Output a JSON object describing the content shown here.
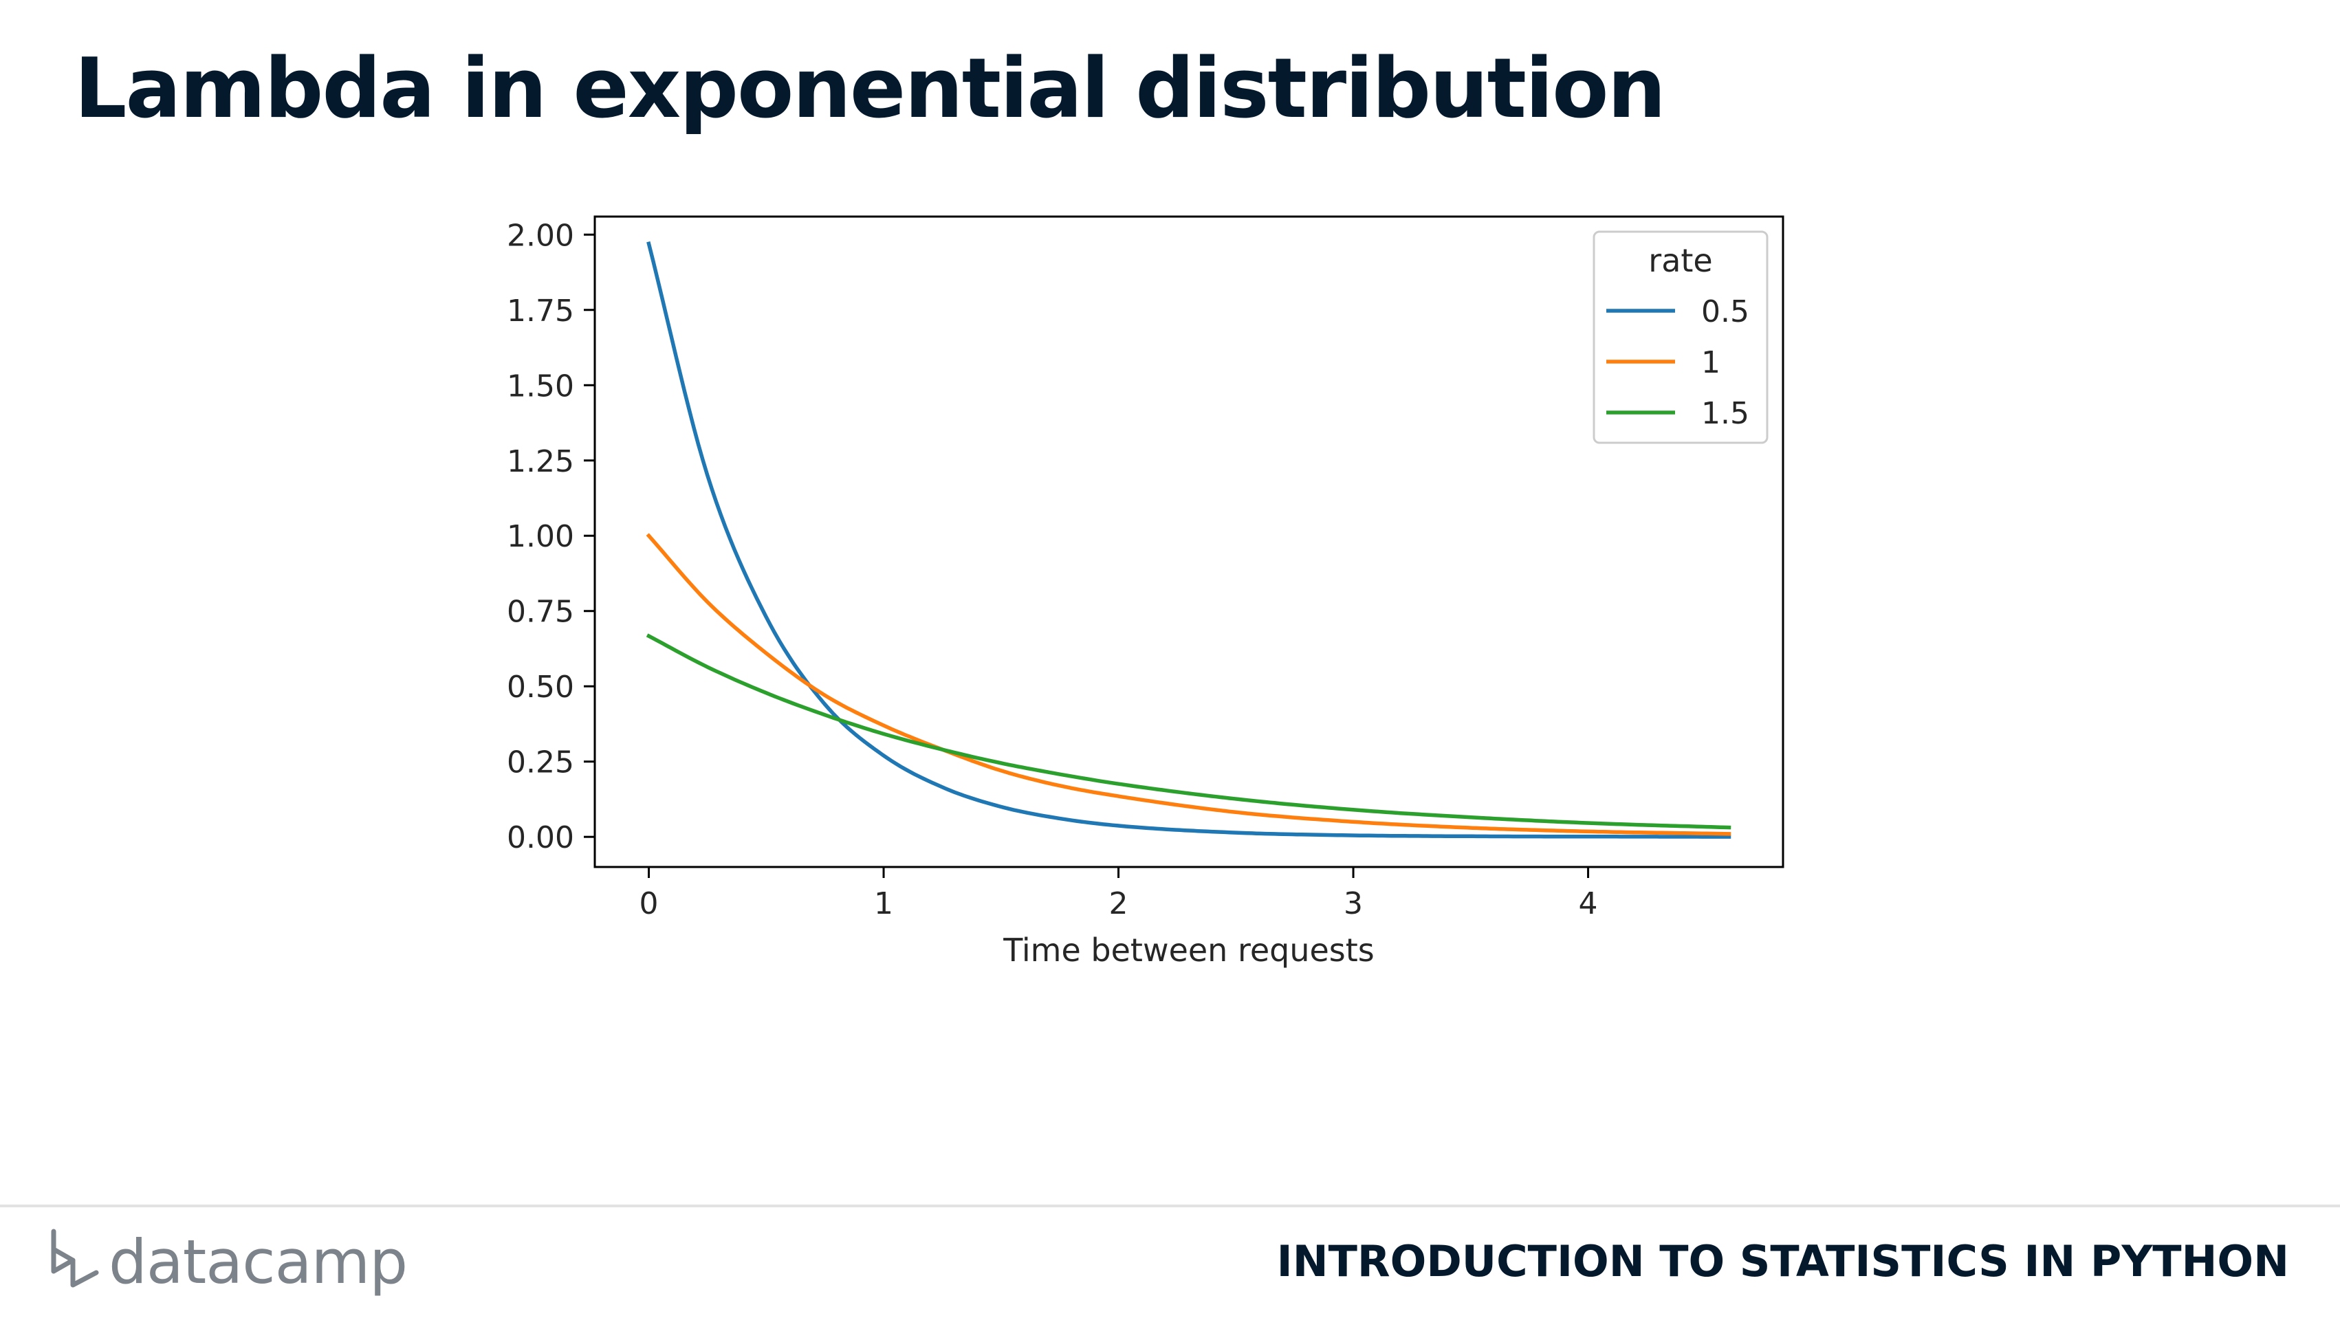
{
  "slide": {
    "title": "Lambda in exponential distribution"
  },
  "footer": {
    "logo_text": "datacamp",
    "logo_icon": "datacamp-logo-icon",
    "course_title": "INTRODUCTION TO STATISTICS IN PYTHON"
  },
  "colors": {
    "title": "#05192d",
    "series_0_5": "#1f77b4",
    "series_1": "#ff7f0e",
    "series_1_5": "#2ca02c",
    "footer_text": "#7d838a"
  },
  "chart_data": {
    "type": "line",
    "title": "",
    "xlabel": "Time between requests",
    "ylabel": "",
    "xlim": [
      -0.23,
      4.83
    ],
    "ylim": [
      -0.1,
      2.06
    ],
    "xticks": [
      0,
      1,
      2,
      3,
      4
    ],
    "xtick_labels": [
      "0",
      "1",
      "2",
      "3",
      "4"
    ],
    "yticks": [
      0.0,
      0.25,
      0.5,
      0.75,
      1.0,
      1.25,
      1.5,
      1.75,
      2.0
    ],
    "ytick_labels": [
      "0.00",
      "0.25",
      "0.50",
      "0.75",
      "1.00",
      "1.25",
      "1.50",
      "1.75",
      "2.00"
    ],
    "x_range": [
      0.0,
      4.6
    ],
    "grid": false,
    "legend": {
      "title": "rate",
      "placement": "top-right"
    },
    "series": [
      {
        "name": "0.5",
        "color": "#1f77b4",
        "x": [
          0,
          0.25,
          0.5,
          0.75,
          1,
          1.25,
          1.5,
          1.75,
          2,
          2.5,
          3,
          3.5,
          4,
          4.6
        ],
        "y": [
          1.97,
          1.2,
          0.73,
          0.44,
          0.27,
          0.165,
          0.1,
          0.061,
          0.037,
          0.014,
          0.005,
          0.002,
          0.001,
          0.0002
        ]
      },
      {
        "name": "1",
        "color": "#ff7f0e",
        "x": [
          0,
          0.25,
          0.5,
          0.75,
          1,
          1.25,
          1.5,
          1.75,
          2,
          2.5,
          3,
          3.5,
          4,
          4.6
        ],
        "y": [
          1.0,
          0.78,
          0.61,
          0.47,
          0.37,
          0.29,
          0.22,
          0.17,
          0.135,
          0.082,
          0.05,
          0.03,
          0.018,
          0.01
        ]
      },
      {
        "name": "1.5",
        "color": "#2ca02c",
        "x": [
          0,
          0.25,
          0.5,
          0.75,
          1,
          1.25,
          1.5,
          1.75,
          2,
          2.5,
          3,
          3.5,
          4,
          4.6
        ],
        "y": [
          0.667,
          0.564,
          0.478,
          0.405,
          0.342,
          0.29,
          0.245,
          0.208,
          0.176,
          0.126,
          0.09,
          0.065,
          0.046,
          0.031
        ]
      }
    ]
  }
}
